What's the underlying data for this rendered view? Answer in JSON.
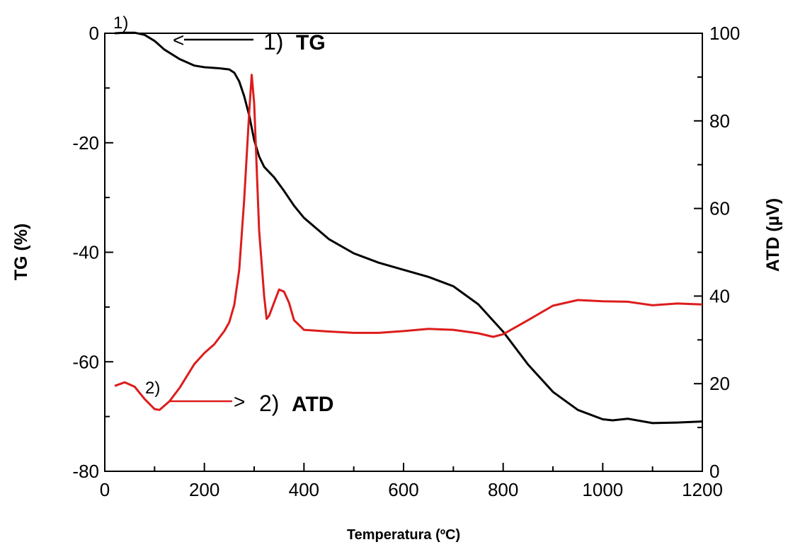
{
  "chart_data": {
    "type": "line",
    "xlabel": "Temperatura (ºC)",
    "ylabel_left": "TG (%)",
    "ylabel_right": "ATD (µV)",
    "xlim": [
      0,
      1200
    ],
    "ylim_left": [
      -80,
      0
    ],
    "ylim_right": [
      0,
      100
    ],
    "x_ticks": [
      "0",
      "200",
      "400",
      "600",
      "800",
      "1000",
      "1200"
    ],
    "y_left_ticks": [
      "0",
      "-20",
      "-40",
      "-60",
      "-80"
    ],
    "y_right_ticks": [
      "100",
      "80",
      "60",
      "40",
      "20",
      "0"
    ],
    "grid": false,
    "series": [
      {
        "name": "1) TG",
        "axis": "left",
        "color": "#000000",
        "points": [
          [
            20,
            0
          ],
          [
            40,
            0.1
          ],
          [
            60,
            0.1
          ],
          [
            80,
            -0.3
          ],
          [
            100,
            -1.4
          ],
          [
            120,
            -3
          ],
          [
            150,
            -4.7
          ],
          [
            180,
            -5.9
          ],
          [
            200,
            -6.2
          ],
          [
            230,
            -6.4
          ],
          [
            250,
            -6.6
          ],
          [
            260,
            -7.2
          ],
          [
            270,
            -8.8
          ],
          [
            280,
            -11.5
          ],
          [
            290,
            -15
          ],
          [
            300,
            -19.5
          ],
          [
            310,
            -22.5
          ],
          [
            320,
            -24.4
          ],
          [
            340,
            -26.3
          ],
          [
            360,
            -28.8
          ],
          [
            380,
            -31.5
          ],
          [
            400,
            -33.7
          ],
          [
            450,
            -37.6
          ],
          [
            500,
            -40.2
          ],
          [
            550,
            -41.9
          ],
          [
            600,
            -43.2
          ],
          [
            650,
            -44.5
          ],
          [
            700,
            -46.2
          ],
          [
            750,
            -49.5
          ],
          [
            780,
            -52.5
          ],
          [
            800,
            -54.5
          ],
          [
            850,
            -60.5
          ],
          [
            900,
            -65.5
          ],
          [
            950,
            -68.8
          ],
          [
            1000,
            -70.5
          ],
          [
            1020,
            -70.7
          ],
          [
            1050,
            -70.4
          ],
          [
            1100,
            -71.2
          ],
          [
            1150,
            -71.1
          ],
          [
            1200,
            -70.9
          ]
        ]
      },
      {
        "name": "2) ATD",
        "axis": "right",
        "color": "#dd1c1c",
        "points": [
          [
            20,
            19.5
          ],
          [
            40,
            20.3
          ],
          [
            60,
            19.3
          ],
          [
            80,
            16.5
          ],
          [
            100,
            14.2
          ],
          [
            110,
            14
          ],
          [
            130,
            16
          ],
          [
            150,
            19
          ],
          [
            180,
            24.5
          ],
          [
            200,
            27
          ],
          [
            220,
            29
          ],
          [
            240,
            32
          ],
          [
            250,
            34
          ],
          [
            260,
            38
          ],
          [
            270,
            46
          ],
          [
            280,
            62
          ],
          [
            290,
            82
          ],
          [
            295,
            90.5
          ],
          [
            300,
            84
          ],
          [
            310,
            55
          ],
          [
            320,
            40
          ],
          [
            325,
            34.8
          ],
          [
            330,
            35.5
          ],
          [
            340,
            38.5
          ],
          [
            350,
            41.5
          ],
          [
            360,
            41
          ],
          [
            370,
            38.5
          ],
          [
            380,
            34.5
          ],
          [
            400,
            32.3
          ],
          [
            450,
            31.9
          ],
          [
            500,
            31.6
          ],
          [
            550,
            31.6
          ],
          [
            600,
            32
          ],
          [
            650,
            32.5
          ],
          [
            700,
            32.3
          ],
          [
            750,
            31.5
          ],
          [
            780,
            30.7
          ],
          [
            800,
            31.3
          ],
          [
            850,
            34.5
          ],
          [
            900,
            37.8
          ],
          [
            950,
            39.1
          ],
          [
            1000,
            38.8
          ],
          [
            1050,
            38.7
          ],
          [
            1100,
            37.9
          ],
          [
            1150,
            38.3
          ],
          [
            1200,
            38.1
          ]
        ]
      }
    ],
    "annotations": {
      "tg_start_label": "1)",
      "tg_arrow_text": "<",
      "tg_label_num": "1)",
      "tg_label_name": "TG",
      "atd_start_label": "2)",
      "atd_arrow_text": ">",
      "atd_label_num": "2)",
      "atd_label_name": "ATD"
    }
  }
}
